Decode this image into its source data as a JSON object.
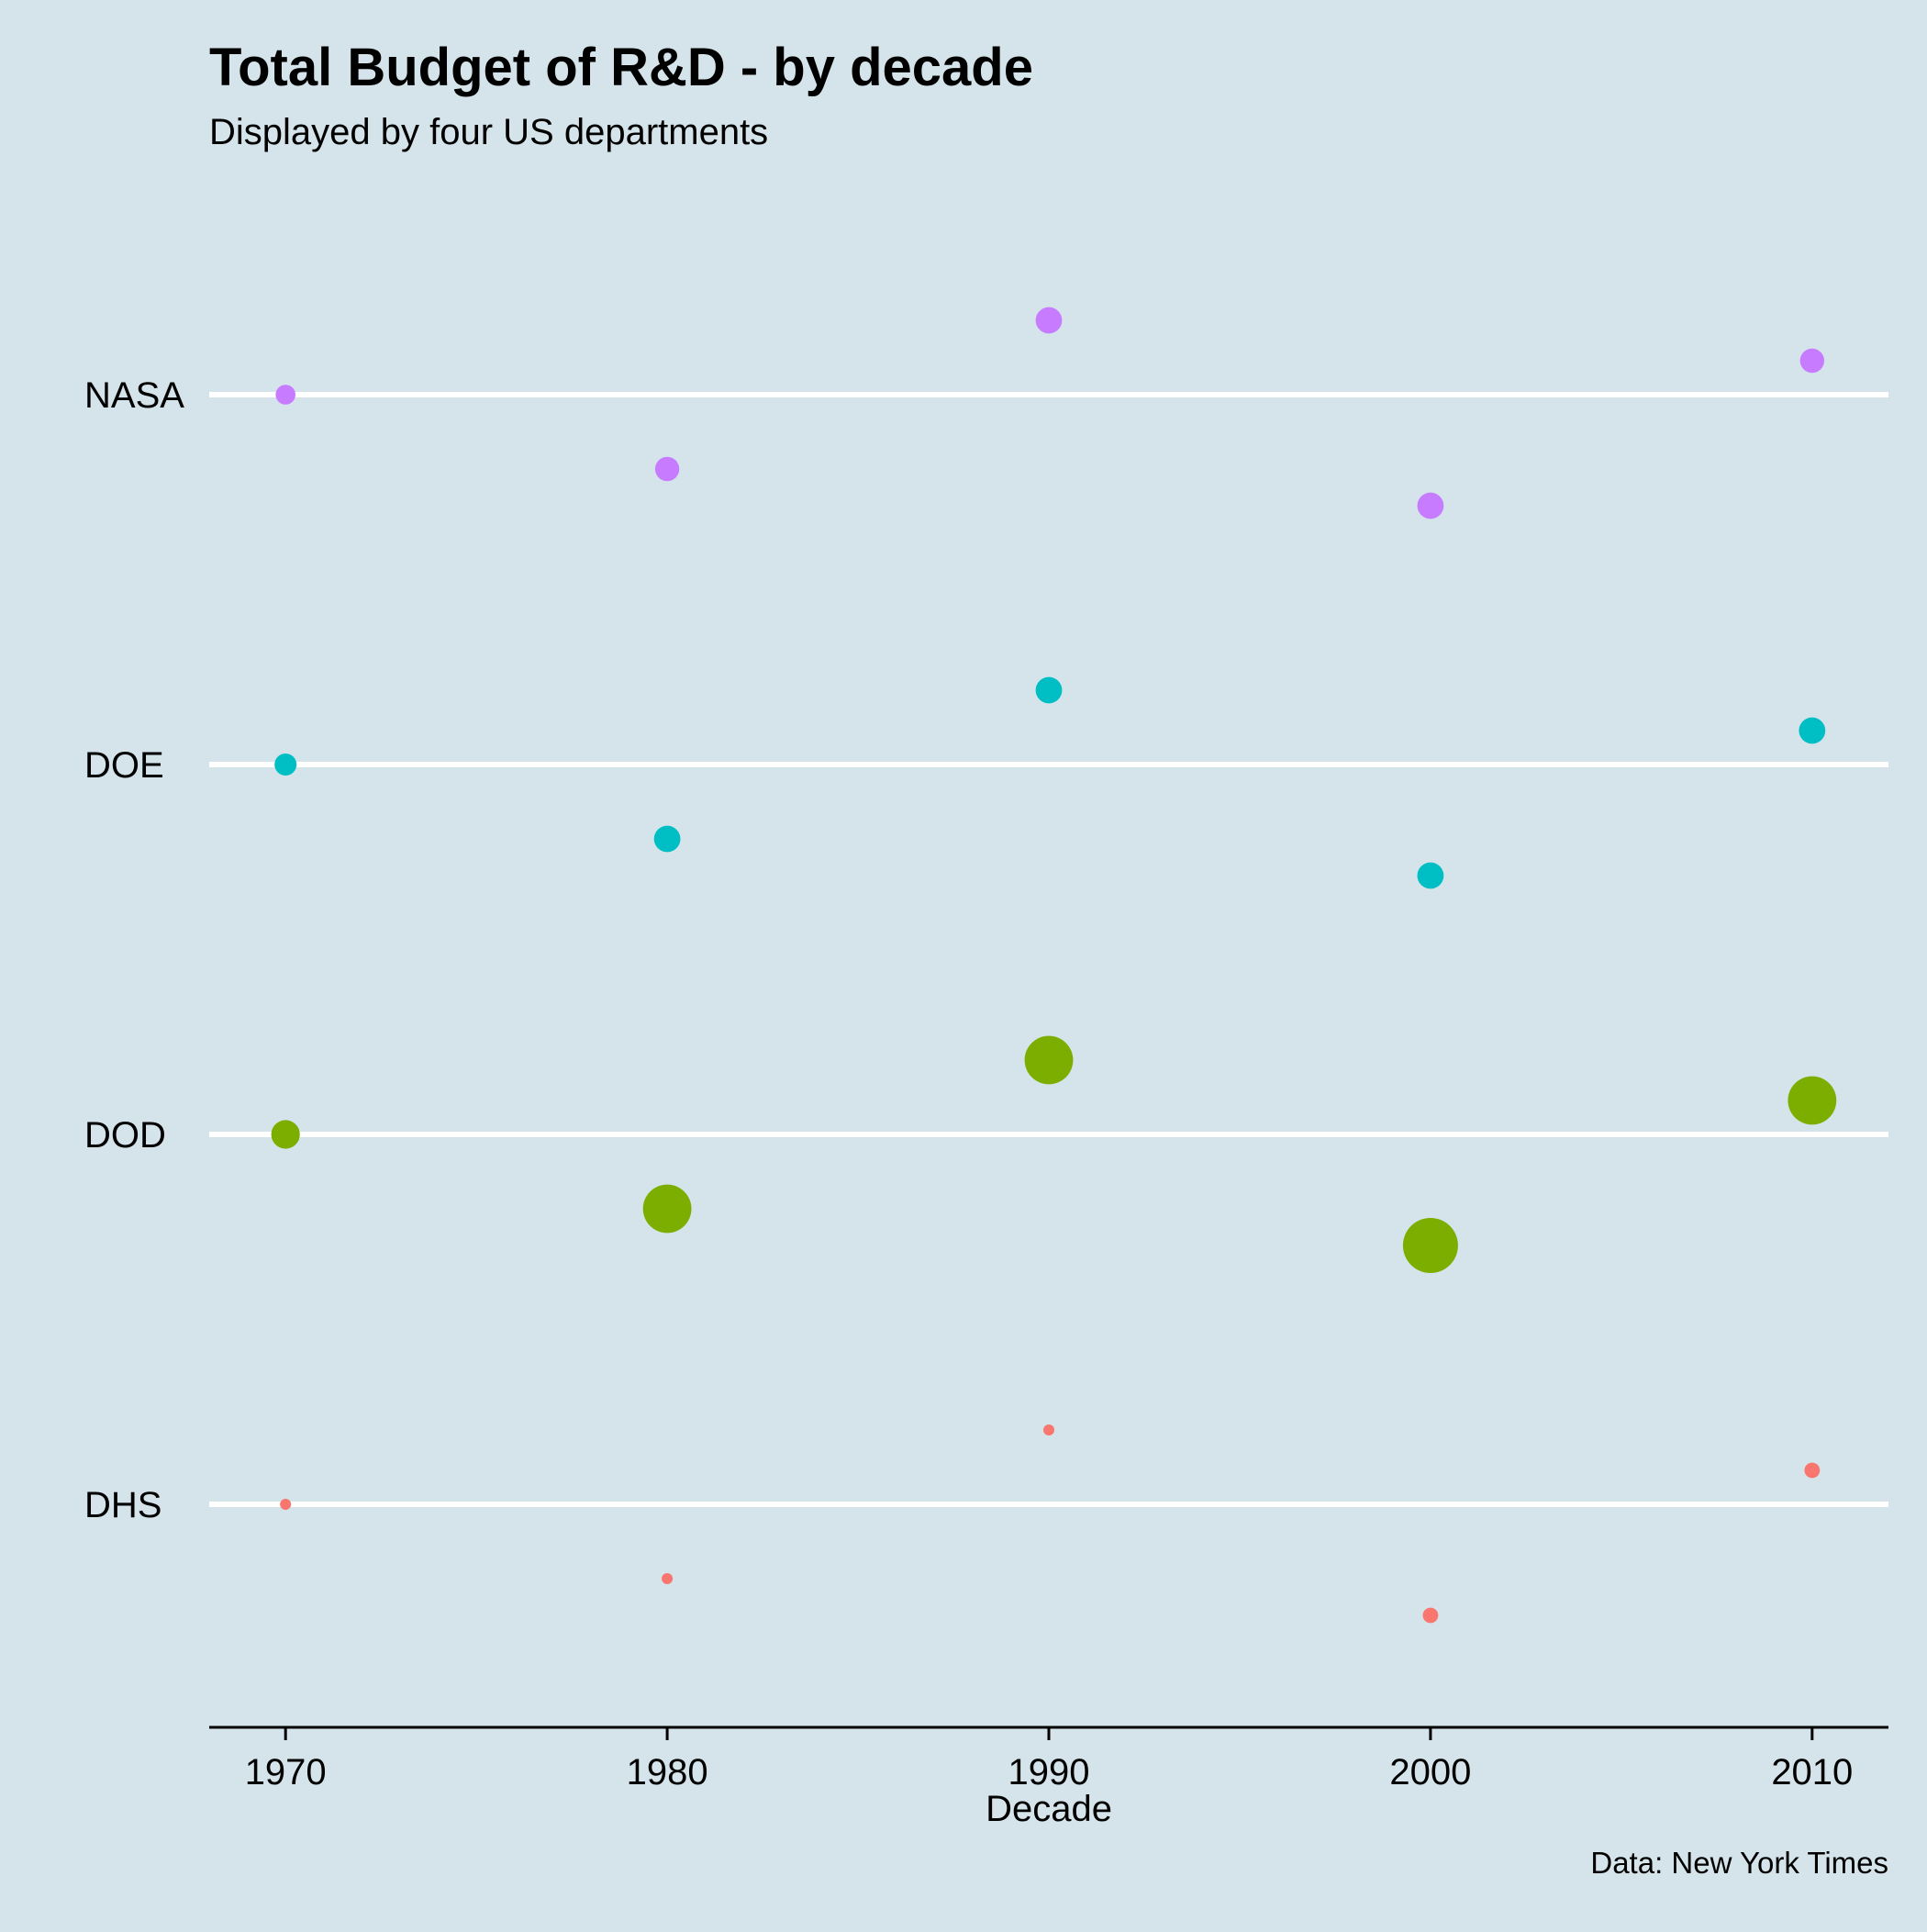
{
  "chart_data": {
    "type": "scatter",
    "title": "Total Budget of R&D - by decade",
    "subtitle": "Displayed by four US departments",
    "xlabel": "Decade",
    "ylabel": "",
    "caption": "Data: New York Times",
    "x_ticks": [
      1970,
      1980,
      1990,
      2000,
      2010
    ],
    "xlim": [
      1968,
      2012
    ],
    "categories": [
      "NASA",
      "DOE",
      "DOD",
      "DHS"
    ],
    "legend": "none",
    "grid": "horizontal lines at category positions",
    "series": [
      {
        "name": "NASA",
        "color": "#c77cff",
        "points": [
          {
            "x": 1970,
            "size": 0.9
          },
          {
            "x": 1980,
            "size": 1.1
          },
          {
            "x": 1990,
            "size": 1.2
          },
          {
            "x": 2000,
            "size": 1.2
          },
          {
            "x": 2010,
            "size": 1.1
          }
        ]
      },
      {
        "name": "DOE",
        "color": "#00bfc4",
        "points": [
          {
            "x": 1970,
            "size": 1.0
          },
          {
            "x": 1980,
            "size": 1.2
          },
          {
            "x": 1990,
            "size": 1.2
          },
          {
            "x": 2000,
            "size": 1.2
          },
          {
            "x": 2010,
            "size": 1.2
          }
        ]
      },
      {
        "name": "DOD",
        "color": "#7cae00",
        "points": [
          {
            "x": 1970,
            "size": 1.3
          },
          {
            "x": 1980,
            "size": 2.2
          },
          {
            "x": 1990,
            "size": 2.2
          },
          {
            "x": 2000,
            "size": 2.5
          },
          {
            "x": 2010,
            "size": 2.2
          }
        ]
      },
      {
        "name": "DHS",
        "color": "#f8766d",
        "points": [
          {
            "x": 1970,
            "size": 0.5
          },
          {
            "x": 1980,
            "size": 0.5
          },
          {
            "x": 1990,
            "size": 0.5
          },
          {
            "x": 2000,
            "size": 0.7
          },
          {
            "x": 2010,
            "size": 0.7
          }
        ]
      }
    ]
  }
}
